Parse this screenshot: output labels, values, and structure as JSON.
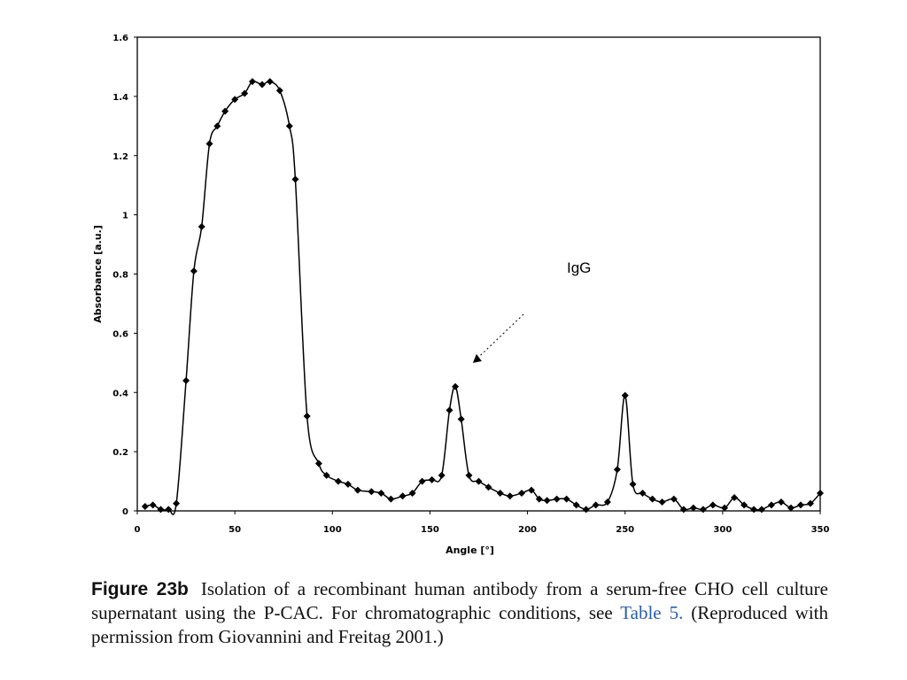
{
  "chart_data": {
    "type": "line",
    "title": "",
    "xlabel": "Angle  [°]",
    "ylabel": "Absorbance [a.u.]",
    "xlim": [
      0,
      350
    ],
    "ylim": [
      0,
      1.6
    ],
    "xticks": [
      0,
      50,
      100,
      150,
      200,
      250,
      300,
      350
    ],
    "yticks": [
      0,
      0.2,
      0.4,
      0.6,
      0.8,
      1,
      1.2,
      1.4,
      1.6
    ],
    "xtick_labels": [
      "0",
      "50",
      "100",
      "150",
      "200",
      "250",
      "300",
      "350"
    ],
    "ytick_labels": [
      "0",
      "0.2",
      "0.4",
      "0.6",
      "0.8",
      "1",
      "1.2",
      "1.4",
      "1.6"
    ],
    "grid": false,
    "marker": "diamond",
    "series": [
      {
        "x": [
          4,
          8,
          12,
          16,
          20,
          25,
          29,
          33,
          37,
          41,
          45,
          50,
          55,
          59,
          64,
          68,
          73,
          78,
          81,
          87,
          93,
          97,
          103,
          108,
          113,
          120,
          125,
          130,
          136,
          141,
          146,
          151,
          156,
          160,
          163,
          166,
          170,
          175,
          180,
          186,
          191,
          197,
          202,
          206,
          210,
          215,
          220,
          225,
          230,
          235,
          241,
          246,
          250,
          254,
          259,
          264,
          269,
          275,
          280,
          285,
          290,
          295,
          301,
          306,
          311,
          316,
          320,
          325,
          330,
          335,
          340,
          345,
          350
        ],
        "y": [
          0.015,
          0.02,
          0.005,
          0.005,
          0.025,
          0.44,
          0.81,
          0.96,
          1.24,
          1.3,
          1.35,
          1.39,
          1.41,
          1.45,
          1.44,
          1.45,
          1.42,
          1.3,
          1.12,
          0.32,
          0.16,
          0.12,
          0.1,
          0.09,
          0.07,
          0.065,
          0.06,
          0.04,
          0.05,
          0.06,
          0.1,
          0.105,
          0.12,
          0.34,
          0.42,
          0.31,
          0.12,
          0.1,
          0.08,
          0.06,
          0.05,
          0.06,
          0.07,
          0.04,
          0.035,
          0.04,
          0.04,
          0.02,
          0.005,
          0.02,
          0.03,
          0.14,
          0.39,
          0.09,
          0.06,
          0.04,
          0.03,
          0.04,
          0.005,
          0.01,
          0.005,
          0.02,
          0.01,
          0.045,
          0.02,
          0.005,
          0.005,
          0.02,
          0.03,
          0.01,
          0.02,
          0.025,
          0.06
        ]
      }
    ],
    "annotations": [
      {
        "text": "IgG",
        "points_to": {
          "x": 172,
          "y": 0.5
        }
      }
    ]
  },
  "caption": {
    "label": "Figure 23b",
    "text_before_link": "Isolation of a recombinant human antibody from a serum-free CHO cell culture supernatant using the P-CAC. For chromatographic conditions, see",
    "link_text": "Table 5.",
    "text_after_link": "(Reproduced with permission from Giovannini and Freitag 2001.)"
  },
  "colors": {
    "line": "#000000",
    "caption_link": "#2a5db0"
  }
}
